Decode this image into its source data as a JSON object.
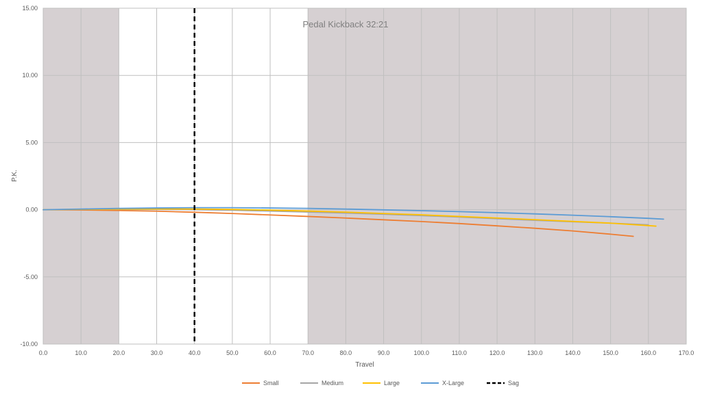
{
  "chart_data": {
    "type": "line",
    "title": "Pedal Kickback 32:21",
    "xlabel": "Travel",
    "ylabel": "P.K.",
    "xlim": [
      0,
      170
    ],
    "ylim": [
      -10,
      15
    ],
    "x_ticks": [
      "0.0",
      "10.0",
      "20.0",
      "30.0",
      "40.0",
      "50.0",
      "60.0",
      "70.0",
      "80.0",
      "90.0",
      "100.0",
      "110.0",
      "120.0",
      "130.0",
      "140.0",
      "150.0",
      "160.0",
      "170.0"
    ],
    "y_ticks": [
      "-10.00",
      "-5.00",
      "0.00",
      "5.00",
      "10.00",
      "15.00"
    ],
    "x_tick_values": [
      0,
      10,
      20,
      30,
      40,
      50,
      60,
      70,
      80,
      90,
      100,
      110,
      120,
      130,
      140,
      150,
      160,
      170
    ],
    "y_tick_values": [
      -10,
      -5,
      0,
      5,
      10,
      15
    ],
    "grid": true,
    "legend_position": "bottom",
    "shaded_regions": [
      {
        "x_start": 0,
        "x_end": 20,
        "color": "#d6d0d2"
      },
      {
        "x_start": 70,
        "x_end": 170,
        "color": "#d6d0d2"
      }
    ],
    "series": [
      {
        "name": "Small",
        "color": "#ed7d31",
        "x": [
          0,
          10,
          20,
          30,
          40,
          50,
          60,
          70,
          80,
          90,
          100,
          110,
          120,
          130,
          140,
          150,
          156
        ],
        "y": [
          0,
          -0.02,
          -0.06,
          -0.11,
          -0.19,
          -0.28,
          -0.39,
          -0.5,
          -0.62,
          -0.75,
          -0.88,
          -1.03,
          -1.2,
          -1.38,
          -1.58,
          -1.82,
          -1.98
        ]
      },
      {
        "name": "Medium",
        "color": "#a5a5a5",
        "x": [
          0,
          10,
          20,
          30,
          40,
          50,
          60,
          70,
          80,
          90,
          100,
          110,
          120,
          130,
          140,
          150,
          160
        ],
        "y": [
          0,
          0.02,
          0.03,
          0.02,
          0,
          -0.04,
          -0.1,
          -0.17,
          -0.25,
          -0.34,
          -0.44,
          -0.55,
          -0.67,
          -0.79,
          -0.9,
          -1.0,
          -1.12
        ]
      },
      {
        "name": "Large",
        "color": "#ffc000",
        "x": [
          0,
          10,
          20,
          30,
          40,
          50,
          60,
          70,
          80,
          90,
          100,
          110,
          120,
          130,
          140,
          150,
          162
        ],
        "y": [
          0,
          0.03,
          0.05,
          0.06,
          0.05,
          0.02,
          -0.03,
          -0.1,
          -0.18,
          -0.28,
          -0.38,
          -0.5,
          -0.62,
          -0.74,
          -0.87,
          -1.0,
          -1.22
        ]
      },
      {
        "name": "X-Large",
        "color": "#5b9bd5",
        "x": [
          0,
          10,
          20,
          30,
          40,
          50,
          60,
          70,
          80,
          90,
          100,
          110,
          120,
          130,
          140,
          150,
          160,
          164
        ],
        "y": [
          0,
          0.05,
          0.1,
          0.13,
          0.15,
          0.15,
          0.13,
          0.1,
          0.05,
          -0.01,
          -0.07,
          -0.14,
          -0.22,
          -0.31,
          -0.41,
          -0.52,
          -0.64,
          -0.7
        ]
      }
    ],
    "sag": {
      "name": "Sag",
      "x": 40,
      "color": "#000000"
    }
  }
}
